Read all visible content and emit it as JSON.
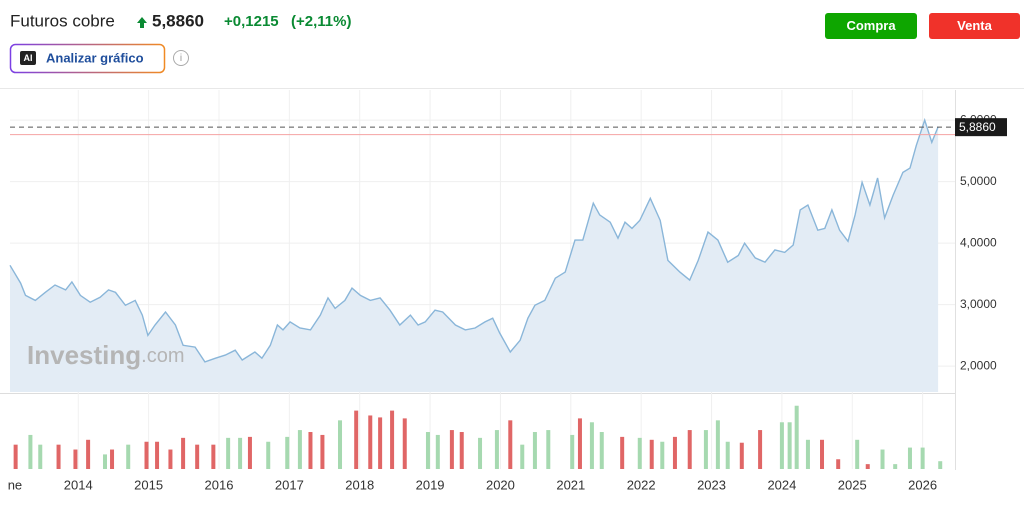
{
  "header": {
    "title": "Futuros cobre",
    "price": "5,8860",
    "change": "+0,1215",
    "change_pct": "(+2,11%)"
  },
  "buttons": {
    "buy": "Compra",
    "sell": "Venta"
  },
  "analyze": {
    "icon": "AI",
    "label": "Analizar gráfico"
  },
  "chart_data": {
    "type": "line",
    "watermark": {
      "brand": "Investing",
      "suffix": ".com"
    },
    "color": "#8ab6d9",
    "fill": "#e3ecf5",
    "grid": true,
    "xlim": [
      2013.03,
      2026.46
    ],
    "ylim": [
      1.58,
      6.49
    ],
    "xticks": [
      {
        "value": 2013.1,
        "label": "ne"
      },
      2014,
      2015,
      2016,
      2017,
      2018,
      2019,
      2020,
      2021,
      2022,
      2023,
      2024,
      2025,
      2026
    ],
    "yticks": [
      {
        "value": 2,
        "label": "2,0000"
      },
      {
        "value": 3,
        "label": "3,0000"
      },
      {
        "value": 4,
        "label": "4,0000"
      },
      {
        "value": 5,
        "label": "5,0000"
      },
      {
        "value": 6,
        "label": "6,0000"
      }
    ],
    "last_price": {
      "value": 5.886,
      "label": "5,8860"
    },
    "previous_close": 5.7645,
    "x": [
      2013.03,
      2013.18,
      2013.25,
      2013.39,
      2013.53,
      2013.67,
      2013.82,
      2013.91,
      2014.03,
      2014.17,
      2014.31,
      2014.43,
      2014.53,
      2014.67,
      2014.81,
      2014.91,
      2014.99,
      2015.09,
      2015.24,
      2015.38,
      2015.49,
      2015.66,
      2015.8,
      2015.95,
      2016.09,
      2016.23,
      2016.33,
      2016.51,
      2016.61,
      2016.73,
      2016.83,
      2016.91,
      2017.01,
      2017.15,
      2017.3,
      2017.44,
      2017.55,
      2017.65,
      2017.79,
      2017.89,
      2018.01,
      2018.15,
      2018.29,
      2018.43,
      2018.57,
      2018.72,
      2018.83,
      2018.93,
      2019.07,
      2019.18,
      2019.36,
      2019.5,
      2019.64,
      2019.78,
      2019.89,
      2019.99,
      2020.14,
      2020.28,
      2020.39,
      2020.49,
      2020.63,
      2020.78,
      2020.92,
      2021.06,
      2021.17,
      2021.32,
      2021.41,
      2021.56,
      2021.67,
      2021.77,
      2021.87,
      2021.98,
      2022.13,
      2022.27,
      2022.38,
      2022.55,
      2022.69,
      2022.81,
      2022.95,
      2023.09,
      2023.23,
      2023.38,
      2023.47,
      2023.62,
      2023.76,
      2023.9,
      2024.04,
      2024.16,
      2024.26,
      2024.37,
      2024.51,
      2024.61,
      2024.71,
      2024.82,
      2024.94,
      2025.04,
      2025.14,
      2025.25,
      2025.36,
      2025.46,
      2025.58,
      2025.72,
      2025.82,
      2025.91,
      2026.03,
      2026.13,
      2026.22
    ],
    "values": [
      3.64,
      3.35,
      3.15,
      3.07,
      3.2,
      3.32,
      3.24,
      3.37,
      3.15,
      3.04,
      3.12,
      3.24,
      3.2,
      2.99,
      3.07,
      2.83,
      2.5,
      2.67,
      2.88,
      2.67,
      2.34,
      2.31,
      2.07,
      2.13,
      2.18,
      2.26,
      2.1,
      2.23,
      2.13,
      2.34,
      2.67,
      2.59,
      2.72,
      2.62,
      2.59,
      2.83,
      3.11,
      2.94,
      3.07,
      3.27,
      3.15,
      3.07,
      3.11,
      2.91,
      2.67,
      2.83,
      2.67,
      2.72,
      2.91,
      2.88,
      2.67,
      2.59,
      2.62,
      2.72,
      2.78,
      2.54,
      2.23,
      2.42,
      2.78,
      2.99,
      3.07,
      3.43,
      3.53,
      4.05,
      4.05,
      4.65,
      4.46,
      4.34,
      4.08,
      4.34,
      4.24,
      4.37,
      4.73,
      4.37,
      3.72,
      3.53,
      3.4,
      3.72,
      4.18,
      4.05,
      3.69,
      3.8,
      4.0,
      3.76,
      3.69,
      3.89,
      3.85,
      3.97,
      4.54,
      4.62,
      4.21,
      4.24,
      4.54,
      4.21,
      4.03,
      4.46,
      4.99,
      4.62,
      5.06,
      4.41,
      4.78,
      5.15,
      5.22,
      5.59,
      6.0,
      5.64,
      5.89
    ],
    "volume": {
      "vlim": [
        0,
        75
      ],
      "x": [
        2013.11,
        2013.32,
        2013.46,
        2013.72,
        2013.96,
        2014.14,
        2014.38,
        2014.48,
        2014.71,
        2014.97,
        2015.12,
        2015.31,
        2015.49,
        2015.69,
        2015.92,
        2016.13,
        2016.3,
        2016.44,
        2016.7,
        2016.97,
        2017.15,
        2017.3,
        2017.47,
        2017.72,
        2017.95,
        2018.15,
        2018.29,
        2018.46,
        2018.64,
        2018.97,
        2019.11,
        2019.31,
        2019.45,
        2019.71,
        2019.95,
        2020.14,
        2020.31,
        2020.49,
        2020.68,
        2021.02,
        2021.13,
        2021.3,
        2021.44,
        2021.73,
        2021.98,
        2022.15,
        2022.3,
        2022.48,
        2022.69,
        2022.92,
        2023.09,
        2023.23,
        2023.43,
        2023.69,
        2024.0,
        2024.11,
        2024.21,
        2024.37,
        2024.57,
        2024.8,
        2025.07,
        2025.22,
        2025.43,
        2025.61,
        2025.82,
        2026.0,
        2026.25
      ],
      "values": [
        25,
        35,
        25,
        25,
        20,
        30,
        15,
        20,
        25,
        28,
        28,
        20,
        32,
        25,
        25,
        32,
        32,
        33,
        28,
        33,
        40,
        38,
        35,
        50,
        60,
        55,
        53,
        60,
        52,
        38,
        35,
        40,
        38,
        32,
        40,
        50,
        25,
        38,
        40,
        35,
        52,
        48,
        38,
        33,
        32,
        30,
        28,
        33,
        40,
        40,
        50,
        28,
        27,
        40,
        48,
        48,
        65,
        30,
        30,
        10,
        30,
        5,
        20,
        5,
        22,
        22,
        8
      ],
      "colors": [
        "#e06666",
        "#a6d9b0",
        "#a6d9b0",
        "#e06666",
        "#e06666",
        "#e06666",
        "#a6d9b0",
        "#e06666",
        "#a6d9b0",
        "#e06666",
        "#e06666",
        "#e06666",
        "#e06666",
        "#e06666",
        "#e06666",
        "#a6d9b0",
        "#a6d9b0",
        "#e06666",
        "#a6d9b0",
        "#a6d9b0",
        "#a6d9b0",
        "#e06666",
        "#e06666",
        "#a6d9b0",
        "#e06666",
        "#e06666",
        "#e06666",
        "#e06666",
        "#e06666",
        "#a6d9b0",
        "#a6d9b0",
        "#e06666",
        "#e06666",
        "#a6d9b0",
        "#a6d9b0",
        "#e06666",
        "#a6d9b0",
        "#a6d9b0",
        "#a6d9b0",
        "#a6d9b0",
        "#e06666",
        "#a6d9b0",
        "#a6d9b0",
        "#e06666",
        "#a6d9b0",
        "#e06666",
        "#a6d9b0",
        "#e06666",
        "#e06666",
        "#a6d9b0",
        "#a6d9b0",
        "#a6d9b0",
        "#e06666",
        "#e06666",
        "#a6d9b0",
        "#a6d9b0",
        "#a6d9b0",
        "#a6d9b0",
        "#e06666",
        "#e06666",
        "#a6d9b0",
        "#e06666",
        "#a6d9b0",
        "#a6d9b0",
        "#a6d9b0",
        "#a6d9b0",
        "#a6d9b0"
      ]
    }
  }
}
